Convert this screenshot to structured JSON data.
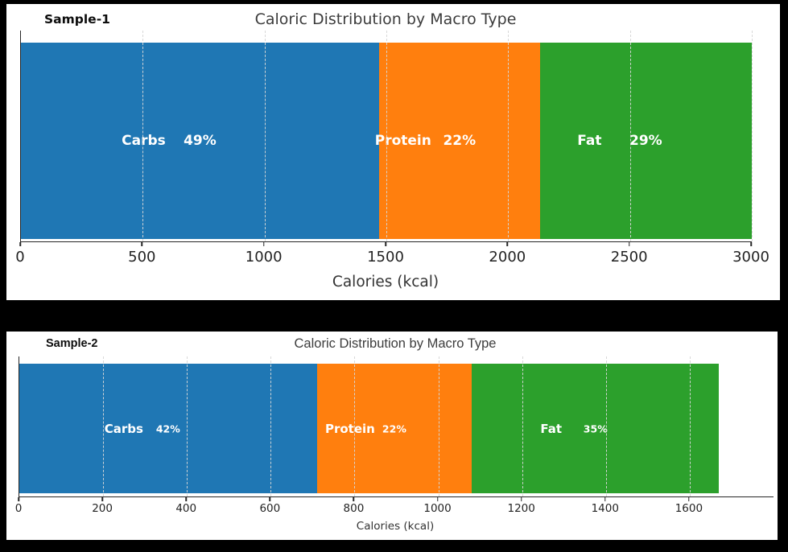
{
  "chart_data": [
    {
      "type": "bar",
      "orientation": "horizontal-stacked",
      "sample": "Sample-1",
      "title": "Caloric Distribution by Macro Type",
      "xlabel": "Calories (kcal)",
      "xlim": [
        0,
        3000
      ],
      "xticks": [
        0,
        500,
        1000,
        1500,
        2000,
        2500,
        3000
      ],
      "grid": "vertical-dashed",
      "legend": "none",
      "segments": [
        {
          "label": "Carbs",
          "percent_label": "49%",
          "percent": 49,
          "kcal": 1470,
          "color": "#1f77b4"
        },
        {
          "label": "Protein",
          "percent_label": "22%",
          "percent": 22,
          "kcal": 660,
          "color": "#ff7f0e"
        },
        {
          "label": "Fat",
          "percent_label": "29%",
          "percent": 29,
          "kcal": 870,
          "color": "#2ca02c"
        }
      ],
      "total_kcal": 3000
    },
    {
      "type": "bar",
      "orientation": "horizontal-stacked",
      "sample": "Sample-2",
      "title": "Caloric Distribution by Macro Type",
      "xlabel": "Calories (kcal)",
      "xlim": [
        0,
        1800
      ],
      "xticks": [
        0,
        200,
        400,
        600,
        800,
        1000,
        1200,
        1400,
        1600
      ],
      "grid": "vertical-dashed",
      "legend": "none",
      "segments": [
        {
          "label": "Carbs",
          "percent_label": "42%",
          "percent": 42,
          "kcal": 710,
          "color": "#1f77b4"
        },
        {
          "label": "Protein",
          "percent_label": "22%",
          "percent": 22,
          "kcal": 370,
          "color": "#ff7f0e"
        },
        {
          "label": "Fat",
          "percent_label": "35%",
          "percent": 35,
          "kcal": 590,
          "color": "#2ca02c"
        }
      ],
      "total_kcal": 1670
    }
  ]
}
